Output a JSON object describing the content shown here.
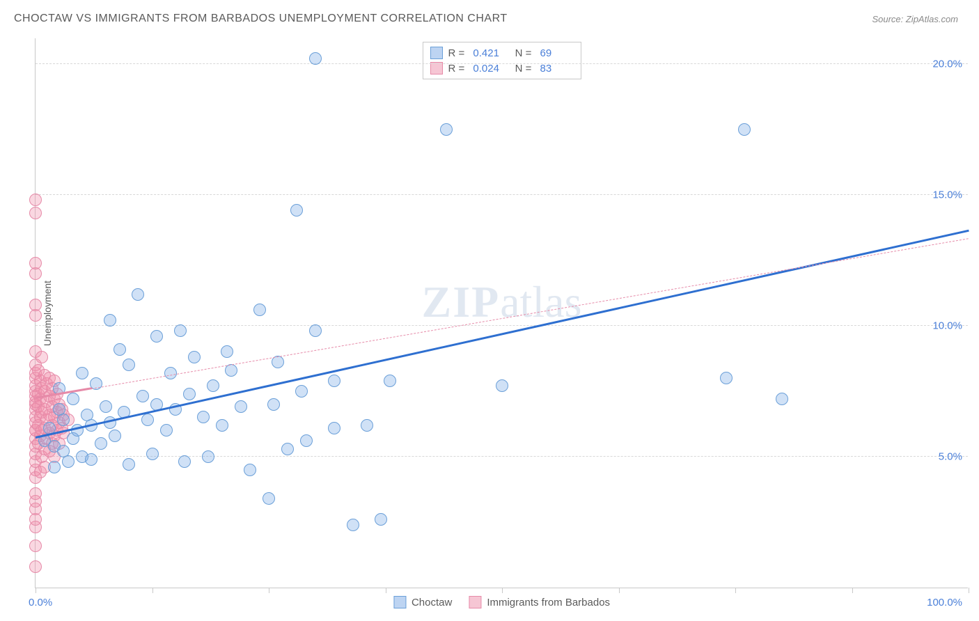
{
  "title": "CHOCTAW VS IMMIGRANTS FROM BARBADOS UNEMPLOYMENT CORRELATION CHART",
  "source": "Source: ZipAtlas.com",
  "watermark_a": "ZIP",
  "watermark_b": "atlas",
  "chart": {
    "type": "scatter",
    "ylabel": "Unemployment",
    "xmin": 0,
    "xmax": 100,
    "ymin": 0,
    "ymax": 21,
    "x_ticks": [
      0,
      12.5,
      25,
      37.5,
      50,
      62.5,
      75,
      87.5,
      100
    ],
    "x_label_min": "0.0%",
    "x_label_max": "100.0%",
    "y_gridlines": [
      5,
      10,
      15,
      20
    ],
    "y_labels": [
      "5.0%",
      "10.0%",
      "15.0%",
      "20.0%"
    ],
    "background_color": "#ffffff",
    "grid_color": "#d8d8d8",
    "axis_color": "#c8c8c8",
    "tick_label_color": "#4a7fd8",
    "marker_radius": 9,
    "marker_stroke_width": 1.5,
    "series": [
      {
        "name": "Choctaw",
        "fill": "rgba(120,170,230,0.35)",
        "stroke": "#6a9fd8",
        "swatch_fill": "#bdd4f2",
        "swatch_border": "#6a9fd8",
        "r_value": "0.421",
        "n_value": "69",
        "trend": {
          "x1": 0,
          "y1": 5.7,
          "x2": 100,
          "y2": 13.6,
          "width": 3,
          "dash": "none",
          "color": "#2e6fd0"
        },
        "points": [
          [
            1,
            5.6
          ],
          [
            1.5,
            6.1
          ],
          [
            2,
            4.6
          ],
          [
            2,
            5.4
          ],
          [
            2.5,
            6.8
          ],
          [
            2.5,
            7.6
          ],
          [
            3,
            5.2
          ],
          [
            3,
            6.4
          ],
          [
            3.5,
            4.8
          ],
          [
            4,
            5.7
          ],
          [
            4,
            7.2
          ],
          [
            4.5,
            6.0
          ],
          [
            5,
            5.0
          ],
          [
            5,
            8.2
          ],
          [
            5.5,
            6.6
          ],
          [
            6,
            4.9
          ],
          [
            6,
            6.2
          ],
          [
            6.5,
            7.8
          ],
          [
            7,
            5.5
          ],
          [
            7.5,
            6.9
          ],
          [
            8,
            6.3
          ],
          [
            8,
            10.2
          ],
          [
            8.5,
            5.8
          ],
          [
            9,
            9.1
          ],
          [
            9.5,
            6.7
          ],
          [
            10,
            8.5
          ],
          [
            10,
            4.7
          ],
          [
            11,
            11.2
          ],
          [
            11.5,
            7.3
          ],
          [
            12,
            6.4
          ],
          [
            12.5,
            5.1
          ],
          [
            13,
            7.0
          ],
          [
            13,
            9.6
          ],
          [
            14,
            6.0
          ],
          [
            14.5,
            8.2
          ],
          [
            15,
            6.8
          ],
          [
            15.5,
            9.8
          ],
          [
            16,
            4.8
          ],
          [
            16.5,
            7.4
          ],
          [
            17,
            8.8
          ],
          [
            18,
            6.5
          ],
          [
            18.5,
            5.0
          ],
          [
            19,
            7.7
          ],
          [
            20,
            6.2
          ],
          [
            20.5,
            9.0
          ],
          [
            21,
            8.3
          ],
          [
            22,
            6.9
          ],
          [
            23,
            4.5
          ],
          [
            24,
            10.6
          ],
          [
            25,
            3.4
          ],
          [
            25.5,
            7.0
          ],
          [
            26,
            8.6
          ],
          [
            27,
            5.3
          ],
          [
            28,
            14.4
          ],
          [
            28.5,
            7.5
          ],
          [
            29,
            5.6
          ],
          [
            30,
            9.8
          ],
          [
            30,
            20.2
          ],
          [
            32,
            6.1
          ],
          [
            32,
            7.9
          ],
          [
            34,
            2.4
          ],
          [
            35.5,
            6.2
          ],
          [
            37,
            2.6
          ],
          [
            38,
            7.9
          ],
          [
            44,
            17.5
          ],
          [
            50,
            7.7
          ],
          [
            74,
            8.0
          ],
          [
            76,
            17.5
          ],
          [
            80,
            7.2
          ]
        ]
      },
      {
        "name": "Immigrants from Barbados",
        "fill": "rgba(240,140,170,0.35)",
        "stroke": "#e68aa8",
        "swatch_fill": "#f6c6d4",
        "swatch_border": "#e68aa8",
        "r_value": "0.024",
        "n_value": "83",
        "trend": {
          "x1": 0,
          "y1": 7.2,
          "x2": 100,
          "y2": 13.3,
          "width": 1.5,
          "dash": "5,4",
          "color": "#e68aa8"
        },
        "trend_solid_until": 6,
        "points": [
          [
            0,
            0.8
          ],
          [
            0,
            1.6
          ],
          [
            0,
            2.3
          ],
          [
            0,
            2.6
          ],
          [
            0,
            3.0
          ],
          [
            0,
            3.3
          ],
          [
            0,
            3.6
          ],
          [
            0,
            4.2
          ],
          [
            0,
            4.5
          ],
          [
            0,
            4.8
          ],
          [
            0,
            5.1
          ],
          [
            0,
            5.4
          ],
          [
            0,
            5.7
          ],
          [
            0,
            6.0
          ],
          [
            0,
            6.0
          ],
          [
            0,
            6.3
          ],
          [
            0,
            6.5
          ],
          [
            0,
            6.8
          ],
          [
            0,
            7.0
          ],
          [
            0,
            7.1
          ],
          [
            0,
            7.3
          ],
          [
            0,
            7.5
          ],
          [
            0,
            7.7
          ],
          [
            0,
            8.0
          ],
          [
            0,
            8.2
          ],
          [
            0,
            8.5
          ],
          [
            0,
            9.0
          ],
          [
            0,
            10.4
          ],
          [
            0,
            10.8
          ],
          [
            0,
            12.0
          ],
          [
            0,
            12.4
          ],
          [
            0,
            14.3
          ],
          [
            0,
            14.8
          ],
          [
            0.3,
            5.5
          ],
          [
            0.3,
            6.2
          ],
          [
            0.3,
            6.9
          ],
          [
            0.3,
            7.4
          ],
          [
            0.3,
            8.3
          ],
          [
            0.5,
            4.4
          ],
          [
            0.5,
            5.8
          ],
          [
            0.5,
            6.5
          ],
          [
            0.5,
            7.2
          ],
          [
            0.5,
            7.9
          ],
          [
            0.7,
            5.0
          ],
          [
            0.7,
            6.0
          ],
          [
            0.7,
            6.7
          ],
          [
            0.7,
            7.6
          ],
          [
            0.7,
            8.8
          ],
          [
            1.0,
            4.6
          ],
          [
            1.0,
            5.3
          ],
          [
            1.0,
            6.1
          ],
          [
            1.0,
            6.8
          ],
          [
            1.0,
            7.5
          ],
          [
            1.0,
            8.1
          ],
          [
            1.2,
            5.7
          ],
          [
            1.2,
            6.4
          ],
          [
            1.2,
            7.1
          ],
          [
            1.2,
            7.8
          ],
          [
            1.5,
            5.2
          ],
          [
            1.5,
            5.9
          ],
          [
            1.5,
            6.6
          ],
          [
            1.5,
            7.3
          ],
          [
            1.5,
            8.0
          ],
          [
            1.8,
            5.5
          ],
          [
            1.8,
            6.2
          ],
          [
            1.8,
            6.9
          ],
          [
            1.8,
            7.6
          ],
          [
            2.0,
            5.0
          ],
          [
            2.0,
            5.8
          ],
          [
            2.0,
            6.5
          ],
          [
            2.0,
            7.2
          ],
          [
            2.0,
            7.9
          ],
          [
            2.3,
            6.0
          ],
          [
            2.3,
            6.7
          ],
          [
            2.3,
            7.4
          ],
          [
            2.5,
            5.5
          ],
          [
            2.5,
            6.3
          ],
          [
            2.5,
            7.0
          ],
          [
            2.8,
            6.1
          ],
          [
            2.8,
            6.8
          ],
          [
            3.0,
            5.9
          ],
          [
            3.0,
            6.6
          ],
          [
            3.5,
            6.4
          ]
        ]
      }
    ]
  }
}
